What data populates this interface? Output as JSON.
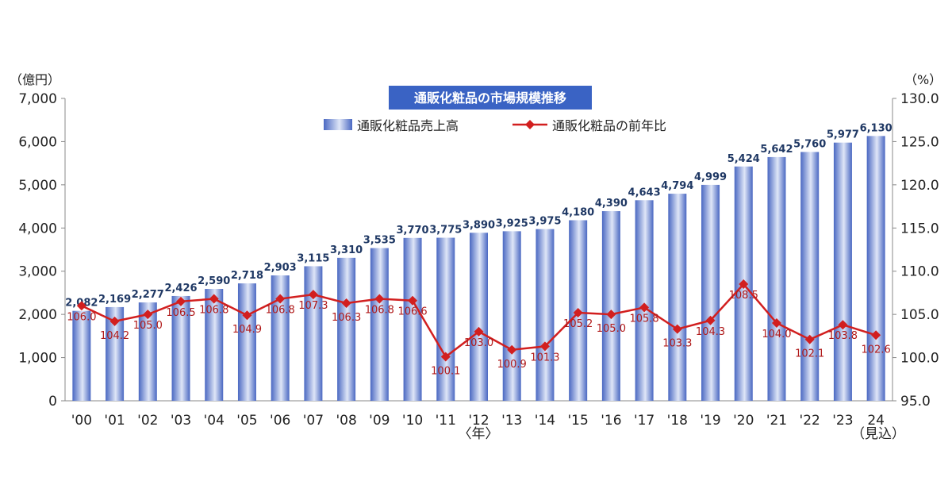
{
  "chart_data": {
    "type": "bar",
    "title": "通販化粧品の市場規模推移",
    "categories": [
      "'00",
      "'01",
      "'02",
      "'03",
      "'04",
      "'05",
      "'06",
      "'07",
      "'08",
      "'09",
      "'10",
      "'11",
      "'12",
      "'13",
      "'14",
      "'15",
      "'16",
      "'17",
      "'18",
      "'19",
      "'20",
      "'21",
      "'22",
      "'23",
      "24"
    ],
    "x_unit": "〈年〉",
    "last_category_note": "（見込）",
    "y_left_label": "（億円）",
    "y_right_label": "（%）",
    "y_left_ticks": [
      "0",
      "1,000",
      "2,000",
      "3,000",
      "4,000",
      "5,000",
      "6,000",
      "7,000"
    ],
    "y_right_ticks": [
      "95.0",
      "100.0",
      "105.0",
      "110.0",
      "115.0",
      "120.0",
      "125.0",
      "130.0"
    ],
    "ylim_left": [
      0,
      7000
    ],
    "ylim_right": [
      95,
      130
    ],
    "colors": {
      "bar": "#4a68c2",
      "bar_light": "#dfe6f7",
      "line": "#d21f1f",
      "title_bg": "#3a63c4",
      "bar_label": "#1f3864",
      "line_label": "#b01919"
    },
    "series": [
      {
        "name": "通販化粧品売上高",
        "kind": "bar",
        "axis": "left",
        "values": [
          2082,
          2169,
          2277,
          2426,
          2590,
          2718,
          2903,
          3115,
          3310,
          3535,
          3770,
          3775,
          3890,
          3925,
          3975,
          4180,
          4390,
          4643,
          4794,
          4999,
          5424,
          5642,
          5760,
          5977,
          6130
        ],
        "labels": [
          "2,082",
          "2,169",
          "2,277",
          "2,426",
          "2,590",
          "2,718",
          "2,903",
          "3,115",
          "3,310",
          "3,535",
          "3,770",
          "3,775",
          "3,890",
          "3,925",
          "3,975",
          "4,180",
          "4,390",
          "4,643",
          "4,794",
          "4,999",
          "5,424",
          "5,642",
          "5,760",
          "5,977",
          "6,130"
        ]
      },
      {
        "name": "通販化粧品の前年比",
        "kind": "line",
        "axis": "right",
        "values": [
          106.0,
          104.2,
          105.0,
          106.5,
          106.8,
          104.9,
          106.8,
          107.3,
          106.3,
          106.8,
          106.6,
          100.1,
          103.0,
          100.9,
          101.3,
          105.2,
          105.0,
          105.8,
          103.3,
          104.3,
          108.5,
          104.0,
          102.1,
          103.8,
          102.6
        ],
        "labels": [
          "106.0",
          "104.2",
          "105.0",
          "106.5",
          "106.8",
          "104.9",
          "106.8",
          "107.3",
          "106.3",
          "106.8",
          "106.6",
          "100.1",
          "103.0",
          "100.9",
          "101.3",
          "105.2",
          "105.0",
          "105.8",
          "103.3",
          "104.3",
          "108.5",
          "104.0",
          "102.1",
          "103.8",
          "102.6"
        ]
      }
    ]
  }
}
